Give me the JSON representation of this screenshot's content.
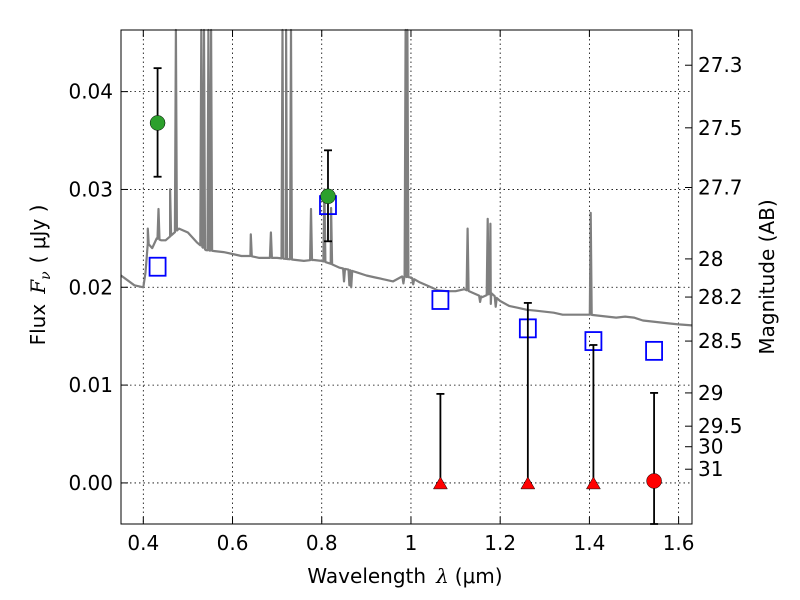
{
  "chart_data": {
    "type": "scatter",
    "xlabel_text": "Wavelength",
    "xlabel_symbol": "λ",
    "xlabel_unit": "(μm)",
    "ylabel_text": "Flux",
    "ylabel_symbol": "F",
    "ylabel_subscript": "ν",
    "ylabel_unit": "( μJy )",
    "y2label": "Magnitude (AB)",
    "xlim": [
      0.35,
      1.63
    ],
    "ylim": [
      -0.0042,
      0.0463
    ],
    "grid": true,
    "x_ticks": [
      {
        "value": 0.4,
        "label": "0.4"
      },
      {
        "value": 0.6,
        "label": "0.6"
      },
      {
        "value": 0.8,
        "label": "0.8"
      },
      {
        "value": 1.0,
        "label": "1"
      },
      {
        "value": 1.2,
        "label": "1.2"
      },
      {
        "value": 1.4,
        "label": "1.4"
      },
      {
        "value": 1.6,
        "label": "1.6"
      }
    ],
    "y_ticks": [
      {
        "value": 0.0,
        "label": "0.00"
      },
      {
        "value": 0.01,
        "label": "0.01"
      },
      {
        "value": 0.02,
        "label": "0.02"
      },
      {
        "value": 0.03,
        "label": "0.03"
      },
      {
        "value": 0.04,
        "label": "0.04"
      }
    ],
    "mag_ticks": [
      {
        "value": 0.0427,
        "label": "27.3"
      },
      {
        "value": 0.0363,
        "label": "27.5"
      },
      {
        "value": 0.0302,
        "label": "27.7"
      },
      {
        "value": 0.0229,
        "label": "28"
      },
      {
        "value": 0.019,
        "label": "28.2"
      },
      {
        "value": 0.0145,
        "label": "28.5"
      },
      {
        "value": 0.0092,
        "label": "29"
      },
      {
        "value": 0.0058,
        "label": "29.5"
      },
      {
        "value": 0.0037,
        "label": "30"
      },
      {
        "value": 0.0014,
        "label": "31"
      }
    ],
    "detections": [
      {
        "x": 0.432,
        "y": 0.0368,
        "err_lo": 0.0313,
        "err_hi": 0.0424
      },
      {
        "x": 0.814,
        "y": 0.0293,
        "err_lo": 0.0247,
        "err_hi": 0.034
      }
    ],
    "upper_limits": [
      {
        "x": 1.066,
        "y": 0.0,
        "err_hi": 0.0091
      },
      {
        "x": 1.262,
        "y": 0.0,
        "err_hi": 0.0184
      },
      {
        "x": 1.409,
        "y": 0.0,
        "err_hi": 0.0141
      }
    ],
    "nondetections": [
      {
        "x": 1.545,
        "y": 0.0002,
        "err_lo": -0.0042,
        "err_hi": 0.0092
      }
    ],
    "model_photometry": [
      {
        "x": 0.432,
        "y": 0.0221
      },
      {
        "x": 0.814,
        "y": 0.0284
      },
      {
        "x": 1.066,
        "y": 0.0187
      },
      {
        "x": 1.262,
        "y": 0.0158
      },
      {
        "x": 1.409,
        "y": 0.0145
      },
      {
        "x": 1.545,
        "y": 0.0135
      }
    ],
    "template_spectrum": [
      [
        0.35,
        0.0212
      ],
      [
        0.38,
        0.0202
      ],
      [
        0.4,
        0.02
      ],
      [
        0.405,
        0.0215
      ],
      [
        0.41,
        0.0245
      ],
      [
        0.42,
        0.024
      ],
      [
        0.43,
        0.025
      ],
      [
        0.44,
        0.0248
      ],
      [
        0.45,
        0.0248
      ],
      [
        0.46,
        0.0252
      ],
      [
        0.48,
        0.026
      ],
      [
        0.5,
        0.0256
      ],
      [
        0.52,
        0.0246
      ],
      [
        0.54,
        0.0238
      ],
      [
        0.56,
        0.0237
      ],
      [
        0.58,
        0.0236
      ],
      [
        0.6,
        0.0234
      ],
      [
        0.62,
        0.0232
      ],
      [
        0.64,
        0.0232
      ],
      [
        0.66,
        0.023
      ],
      [
        0.68,
        0.023
      ],
      [
        0.7,
        0.023
      ],
      [
        0.72,
        0.0229
      ],
      [
        0.74,
        0.0228
      ],
      [
        0.76,
        0.0227
      ],
      [
        0.78,
        0.0228
      ],
      [
        0.8,
        0.0227
      ],
      [
        0.82,
        0.0224
      ],
      [
        0.84,
        0.022
      ],
      [
        0.86,
        0.0218
      ],
      [
        0.88,
        0.0215
      ],
      [
        0.9,
        0.0212
      ],
      [
        0.92,
        0.021
      ],
      [
        0.94,
        0.0208
      ],
      [
        0.96,
        0.0206
      ],
      [
        0.98,
        0.0211
      ],
      [
        1.0,
        0.021
      ],
      [
        1.02,
        0.0205
      ],
      [
        1.04,
        0.0201
      ],
      [
        1.06,
        0.0197
      ],
      [
        1.08,
        0.0196
      ],
      [
        1.1,
        0.0196
      ],
      [
        1.12,
        0.0198
      ],
      [
        1.14,
        0.0194
      ],
      [
        1.16,
        0.019
      ],
      [
        1.18,
        0.0194
      ],
      [
        1.2,
        0.0186
      ],
      [
        1.22,
        0.0181
      ],
      [
        1.24,
        0.0179
      ],
      [
        1.26,
        0.0177
      ],
      [
        1.28,
        0.0176
      ],
      [
        1.3,
        0.0175
      ],
      [
        1.32,
        0.0174
      ],
      [
        1.34,
        0.0172
      ],
      [
        1.36,
        0.0172
      ],
      [
        1.38,
        0.0172
      ],
      [
        1.4,
        0.0172
      ],
      [
        1.42,
        0.0171
      ],
      [
        1.44,
        0.017
      ],
      [
        1.46,
        0.0169
      ],
      [
        1.48,
        0.017
      ],
      [
        1.5,
        0.0169
      ],
      [
        1.52,
        0.0166
      ],
      [
        1.54,
        0.0165
      ],
      [
        1.56,
        0.0164
      ],
      [
        1.58,
        0.0163
      ],
      [
        1.6,
        0.0162
      ],
      [
        1.63,
        0.0161
      ]
    ],
    "emission_lines": [
      {
        "x": 0.41,
        "peak": 0.026
      },
      {
        "x": 0.434,
        "peak": 0.028
      },
      {
        "x": 0.46,
        "peak": 0.03
      },
      {
        "x": 0.473,
        "peak": 0.0463
      },
      {
        "x": 0.53,
        "peak": 0.0463
      },
      {
        "x": 0.536,
        "peak": 0.0463
      },
      {
        "x": 0.546,
        "peak": 0.0463
      },
      {
        "x": 0.552,
        "peak": 0.0463
      },
      {
        "x": 0.641,
        "peak": 0.0254
      },
      {
        "x": 0.686,
        "peak": 0.0256
      },
      {
        "x": 0.712,
        "peak": 0.0463
      },
      {
        "x": 0.72,
        "peak": 0.0463
      },
      {
        "x": 0.731,
        "peak": 0.0463
      },
      {
        "x": 0.776,
        "peak": 0.028
      },
      {
        "x": 0.806,
        "peak": 0.03
      },
      {
        "x": 0.821,
        "peak": 0.0281
      },
      {
        "x": 0.988,
        "peak": 0.0463
      },
      {
        "x": 0.992,
        "peak": 0.0463
      },
      {
        "x": 1.127,
        "peak": 0.026
      },
      {
        "x": 1.172,
        "peak": 0.027
      },
      {
        "x": 1.178,
        "peak": 0.0265
      },
      {
        "x": 1.403,
        "peak": 0.0276
      }
    ],
    "absorption_lines": [
      {
        "x": 0.85,
        "dip": 0.0206
      },
      {
        "x": 0.862,
        "dip": 0.0202
      },
      {
        "x": 0.866,
        "dip": 0.02
      },
      {
        "x": 0.983,
        "dip": 0.0204
      },
      {
        "x": 1.005,
        "dip": 0.0203
      },
      {
        "x": 1.155,
        "dip": 0.0185
      },
      {
        "x": 1.179,
        "dip": 0.0183
      },
      {
        "x": 1.19,
        "dip": 0.018
      }
    ],
    "colors": {
      "spectrum": "#7f7f7f",
      "detection": "#2ca02c",
      "limit": "#ff0000",
      "model": "#0000ff",
      "errorbar": "#000000",
      "grid": "#000000"
    }
  }
}
